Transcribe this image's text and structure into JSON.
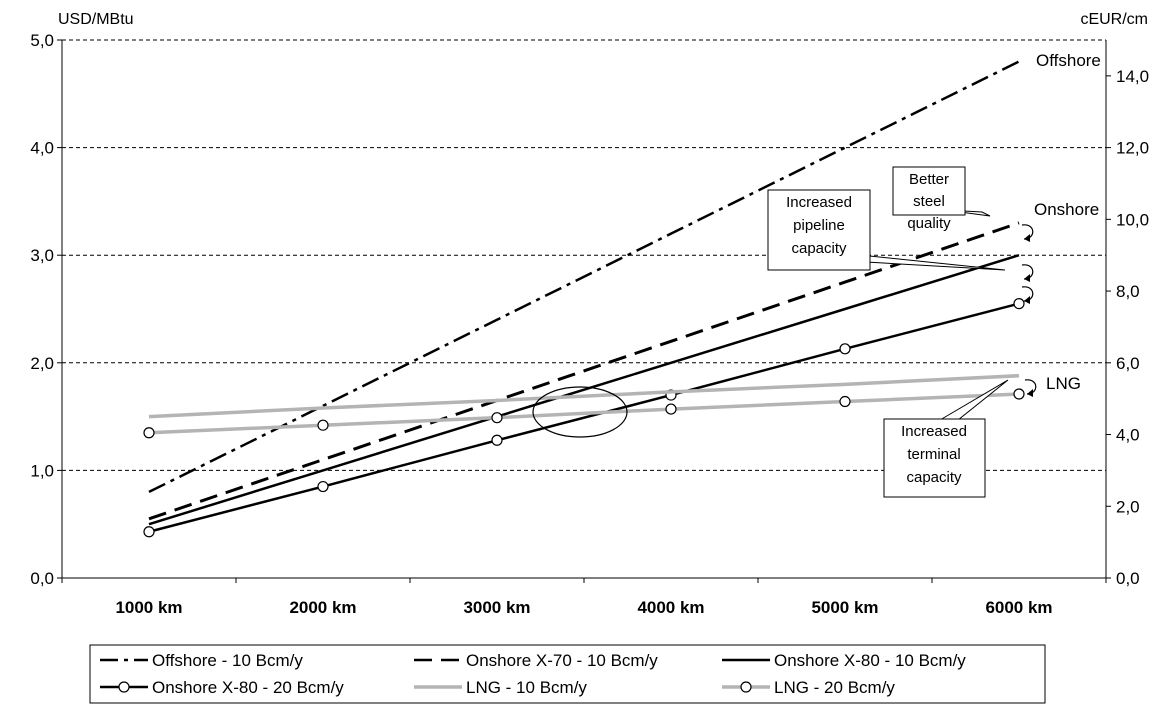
{
  "chart_data": {
    "type": "line",
    "title": "",
    "ylabel_left": "USD/MBtu",
    "ylabel_right": "cEUR/cm",
    "categories": [
      "1000 km",
      "2000 km",
      "3000 km",
      "4000 km",
      "5000 km",
      "6000 km"
    ],
    "x": [
      1000,
      2000,
      3000,
      4000,
      5000,
      6000
    ],
    "xlim": [
      500,
      6500
    ],
    "ylim_left": [
      0,
      5
    ],
    "ylim_right": [
      0,
      15
    ],
    "yticks_left": [
      "0,0",
      "1,0",
      "2,0",
      "3,0",
      "4,0",
      "5,0"
    ],
    "yticks_right": [
      "0,0",
      "2,0",
      "4,0",
      "6,0",
      "8,0",
      "10,0",
      "12,0",
      "14,0"
    ],
    "grid": "horizontal dashed",
    "legend_position": "bottom",
    "series": [
      {
        "name": "Offshore - 10 Bcm/y",
        "style": "dashdot",
        "color": "#000000",
        "markers": false,
        "values": [
          0.8,
          1.6,
          2.4,
          3.2,
          4.0,
          4.8
        ]
      },
      {
        "name": "Onshore X-70 - 10 Bcm/y",
        "style": "dash",
        "color": "#000000",
        "markers": false,
        "values": [
          0.55,
          1.1,
          1.65,
          2.2,
          2.75,
          3.3
        ]
      },
      {
        "name": "Onshore X-80 - 10 Bcm/y",
        "style": "solid",
        "color": "#000000",
        "markers": false,
        "values": [
          0.5,
          1.0,
          1.5,
          2.0,
          2.5,
          3.0
        ]
      },
      {
        "name": "Onshore X-80 - 20 Bcm/y",
        "style": "solid",
        "color": "#000000",
        "markers": true,
        "values": [
          0.43,
          0.85,
          1.28,
          1.7,
          2.13,
          2.55
        ]
      },
      {
        "name": "LNG - 10 Bcm/y",
        "style": "solid",
        "color": "#b4b4b4",
        "markers": false,
        "values": [
          1.5,
          1.58,
          1.65,
          1.73,
          1.8,
          1.88
        ]
      },
      {
        "name": "LNG - 20 Bcm/y",
        "style": "solid",
        "color": "#b4b4b4",
        "markers": true,
        "values": [
          1.35,
          1.42,
          1.49,
          1.57,
          1.64,
          1.71
        ]
      }
    ],
    "annotations": {
      "labels": [
        "Offshore",
        "Onshore",
        "LNG"
      ],
      "callouts": [
        {
          "id": "steel",
          "text": [
            "Better",
            "steel",
            "quality"
          ]
        },
        {
          "id": "pipeline",
          "text": [
            "Increased",
            "pipeline",
            "capacity"
          ]
        },
        {
          "id": "terminal",
          "text": [
            "Increased",
            "terminal",
            "capacity"
          ]
        }
      ]
    }
  }
}
